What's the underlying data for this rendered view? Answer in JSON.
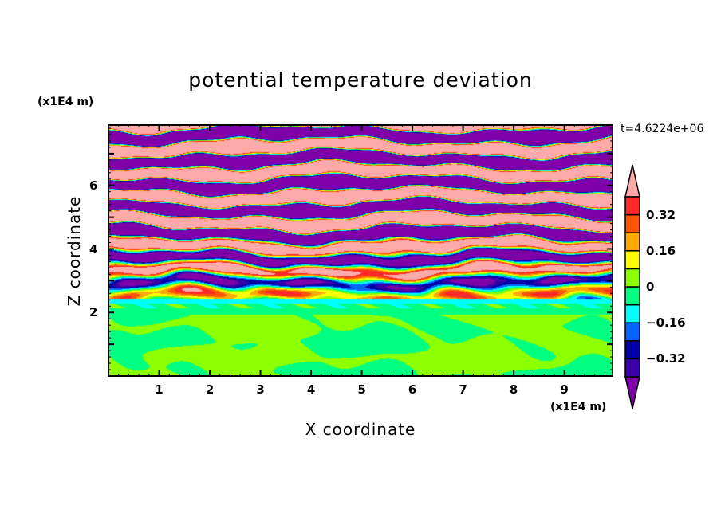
{
  "chart_data": {
    "type": "heatmap",
    "title": "potential temperature deviation",
    "xlabel": "X coordinate",
    "ylabel": "Z coordinate",
    "x_unit": "(x1E4 m)",
    "z_unit": "(x1E4 m)",
    "time_label": "t=4.6224e+06",
    "xlim": [
      0,
      9.95
    ],
    "zlim": [
      0,
      7.9
    ],
    "x_ticks": [
      1,
      2,
      3,
      4,
      5,
      6,
      7,
      8,
      9
    ],
    "x_tick_labels": [
      "1",
      "2",
      "3",
      "4",
      "5",
      "6",
      "7",
      "8",
      "9"
    ],
    "z_ticks": [
      2,
      4,
      6
    ],
    "z_tick_labels": [
      "2",
      "4",
      "6"
    ],
    "levels": [
      -0.4,
      -0.32,
      -0.24,
      -0.16,
      -0.08,
      0,
      0.08,
      0.16,
      0.24,
      0.32,
      0.4
    ],
    "colorbar_labels": [
      {
        "value": 0.32,
        "text": "0.32"
      },
      {
        "value": 0.16,
        "text": "0.16"
      },
      {
        "value": 0,
        "text": "0"
      },
      {
        "value": -0.16,
        "text": "−0.16"
      },
      {
        "value": -0.32,
        "text": "−0.32"
      }
    ],
    "colors": {
      "under": "#7f00a8",
      "bins": [
        "#3c00a8",
        "#0000a8",
        "#0064ff",
        "#00ffff",
        "#00ff80",
        "#8cff00",
        "#ffff00",
        "#ffaa00",
        "#ff5500",
        "#ff2828"
      ],
      "over": "#ffaaaa"
    }
  }
}
